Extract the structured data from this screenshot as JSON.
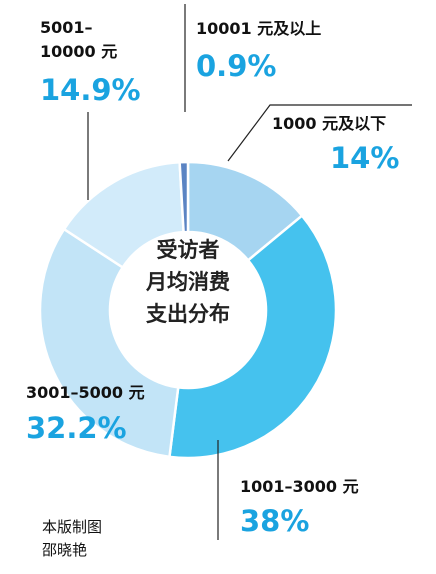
{
  "chart_data": {
    "type": "pie",
    "center_label": [
      "受访者",
      "月均消费",
      "支出分布"
    ],
    "categories": [
      "1000元及以下",
      "1001–3000元",
      "3001–5000元",
      "5001–10000元",
      "10001元及以上"
    ],
    "values": [
      14,
      38,
      32.2,
      14.9,
      0.9
    ],
    "value_labels": [
      "14%",
      "38%",
      "32.2%",
      "14.9%",
      "0.9%"
    ],
    "colors": [
      "#a6d5f1",
      "#45c2ee",
      "#c2e4f7",
      "#d2ebfa",
      "#5b84c3"
    ]
  },
  "labels": {
    "s0": "1000 元及以下",
    "s1": "1001–3000 元",
    "s2": "3001–5000 元",
    "s3a": "5001–",
    "s3b": "10000 元",
    "s4": "10001 元及以上"
  },
  "credit": [
    "本版制图",
    "邵晓艳"
  ]
}
